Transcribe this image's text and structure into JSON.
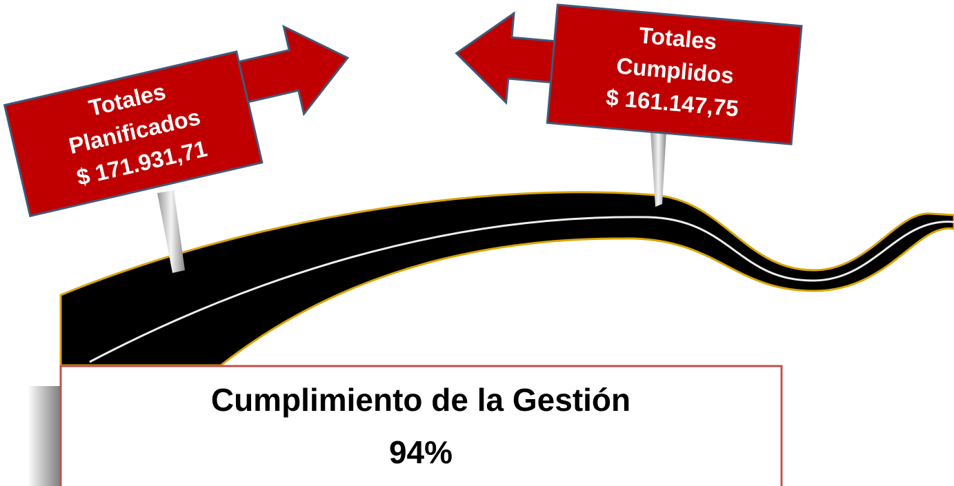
{
  "signs": [
    {
      "lines": [
        "Totales",
        "Planificados",
        "$ 171.931,71"
      ]
    },
    {
      "lines": [
        "Totales",
        "Cumplidos",
        "$ 161.147,75"
      ]
    }
  ],
  "summary": {
    "title": "Cumplimiento de la Gestión",
    "value": "94%"
  }
}
